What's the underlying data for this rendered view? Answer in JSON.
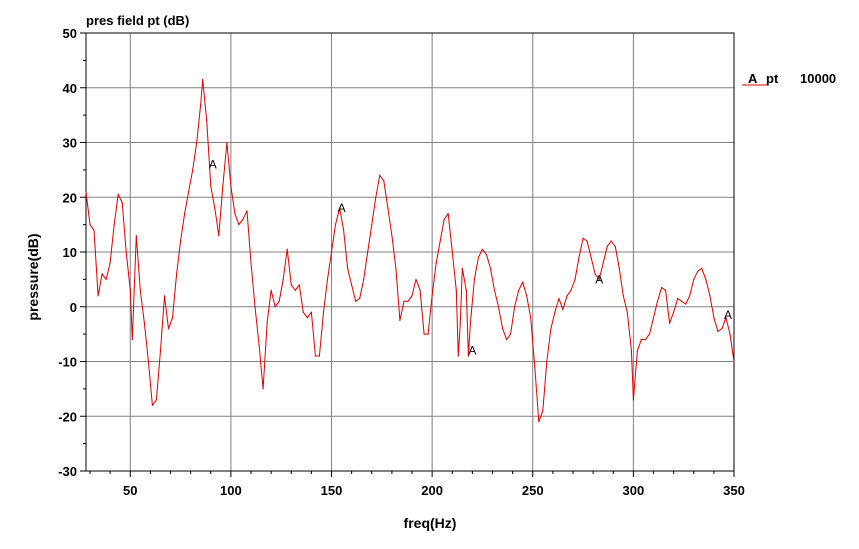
{
  "chart_data": {
    "type": "line",
    "title": "pres field pt (dB)",
    "xlabel": "freq(Hz)",
    "ylabel": "pressure(dB)",
    "xlim": [
      28,
      350
    ],
    "ylim": [
      -30,
      50
    ],
    "x_ticks": [
      50,
      100,
      150,
      200,
      250,
      300,
      350
    ],
    "y_ticks": [
      -30,
      -20,
      -10,
      0,
      10,
      20,
      30,
      40,
      50
    ],
    "grid": true,
    "legend_position": "right",
    "series": [
      {
        "name": "pt",
        "legend_marker": "A",
        "legend_value": "10000",
        "color": "#dd0000",
        "marker_label": "A",
        "marker_points": [
          [
            91,
            26
          ],
          [
            155,
            18
          ],
          [
            220,
            -8
          ],
          [
            283,
            5
          ],
          [
            347,
            -1.5
          ]
        ],
        "points": [
          [
            28,
            21
          ],
          [
            30,
            15
          ],
          [
            32,
            14
          ],
          [
            34,
            2
          ],
          [
            36,
            6
          ],
          [
            38,
            5
          ],
          [
            40,
            8
          ],
          [
            42,
            15
          ],
          [
            44,
            20.5
          ],
          [
            46,
            19
          ],
          [
            48,
            10
          ],
          [
            50,
            3
          ],
          [
            51,
            -6
          ],
          [
            53,
            13
          ],
          [
            55,
            3
          ],
          [
            57,
            -3
          ],
          [
            59,
            -10
          ],
          [
            61,
            -18
          ],
          [
            63,
            -17
          ],
          [
            65,
            -8
          ],
          [
            67,
            2
          ],
          [
            69,
            -4
          ],
          [
            71,
            -2
          ],
          [
            73,
            6
          ],
          [
            75,
            12
          ],
          [
            77,
            17
          ],
          [
            79,
            21
          ],
          [
            81,
            25
          ],
          [
            83,
            30
          ],
          [
            85,
            37
          ],
          [
            86,
            41.5
          ],
          [
            88,
            34
          ],
          [
            90,
            22
          ],
          [
            92,
            18
          ],
          [
            94,
            13
          ],
          [
            96,
            22
          ],
          [
            98,
            30
          ],
          [
            100,
            22
          ],
          [
            102,
            17
          ],
          [
            104,
            15
          ],
          [
            106,
            16
          ],
          [
            108,
            17.5
          ],
          [
            110,
            8
          ],
          [
            112,
            0
          ],
          [
            114,
            -7
          ],
          [
            116,
            -15
          ],
          [
            118,
            -3
          ],
          [
            120,
            3
          ],
          [
            122,
            0
          ],
          [
            124,
            1
          ],
          [
            126,
            5
          ],
          [
            128,
            10.5
          ],
          [
            130,
            4
          ],
          [
            132,
            3
          ],
          [
            134,
            4
          ],
          [
            136,
            -1
          ],
          [
            138,
            -2
          ],
          [
            140,
            -1
          ],
          [
            142,
            -9
          ],
          [
            144,
            -9
          ],
          [
            146,
            -1
          ],
          [
            148,
            5
          ],
          [
            150,
            10
          ],
          [
            152,
            15
          ],
          [
            154,
            18
          ],
          [
            156,
            14
          ],
          [
            158,
            7
          ],
          [
            160,
            4
          ],
          [
            162,
            1
          ],
          [
            164,
            1.5
          ],
          [
            166,
            5
          ],
          [
            168,
            10
          ],
          [
            170,
            15
          ],
          [
            172,
            20
          ],
          [
            174,
            24
          ],
          [
            176,
            23
          ],
          [
            178,
            18
          ],
          [
            180,
            13
          ],
          [
            182,
            7
          ],
          [
            184,
            -2.5
          ],
          [
            186,
            1
          ],
          [
            188,
            1
          ],
          [
            190,
            2
          ],
          [
            192,
            5
          ],
          [
            194,
            3
          ],
          [
            196,
            -5
          ],
          [
            198,
            -5
          ],
          [
            200,
            2
          ],
          [
            202,
            8
          ],
          [
            204,
            12
          ],
          [
            206,
            16
          ],
          [
            208,
            17
          ],
          [
            210,
            10
          ],
          [
            212,
            3
          ],
          [
            213,
            -9
          ],
          [
            214,
            -3
          ],
          [
            215,
            7
          ],
          [
            217,
            3
          ],
          [
            218,
            -9
          ],
          [
            219,
            -3
          ],
          [
            221,
            5
          ],
          [
            223,
            9
          ],
          [
            225,
            10.5
          ],
          [
            227,
            9.5
          ],
          [
            229,
            7
          ],
          [
            231,
            3
          ],
          [
            233,
            0
          ],
          [
            235,
            -4
          ],
          [
            237,
            -6
          ],
          [
            239,
            -5
          ],
          [
            241,
            0
          ],
          [
            243,
            3
          ],
          [
            245,
            4.5
          ],
          [
            247,
            2
          ],
          [
            249,
            -2
          ],
          [
            251,
            -11
          ],
          [
            253,
            -21
          ],
          [
            255,
            -19
          ],
          [
            257,
            -10
          ],
          [
            259,
            -4
          ],
          [
            261,
            -1
          ],
          [
            263,
            1.5
          ],
          [
            265,
            -0.5
          ],
          [
            267,
            2
          ],
          [
            269,
            3
          ],
          [
            271,
            5
          ],
          [
            273,
            9
          ],
          [
            275,
            12.5
          ],
          [
            277,
            12
          ],
          [
            279,
            9
          ],
          [
            281,
            6
          ],
          [
            283,
            5
          ],
          [
            285,
            8
          ],
          [
            287,
            11
          ],
          [
            289,
            12
          ],
          [
            291,
            11
          ],
          [
            293,
            7
          ],
          [
            295,
            2
          ],
          [
            297,
            -1
          ],
          [
            299,
            -8
          ],
          [
            300,
            -17
          ],
          [
            302,
            -8
          ],
          [
            304,
            -6
          ],
          [
            306,
            -6
          ],
          [
            308,
            -5
          ],
          [
            310,
            -2
          ],
          [
            312,
            1
          ],
          [
            314,
            3.5
          ],
          [
            316,
            3
          ],
          [
            318,
            -3
          ],
          [
            320,
            -1
          ],
          [
            322,
            1.5
          ],
          [
            324,
            1
          ],
          [
            326,
            0.5
          ],
          [
            328,
            2
          ],
          [
            330,
            5
          ],
          [
            332,
            6.5
          ],
          [
            334,
            7
          ],
          [
            336,
            5
          ],
          [
            338,
            2
          ],
          [
            340,
            -2
          ],
          [
            342,
            -4.5
          ],
          [
            344,
            -4
          ],
          [
            346,
            -2
          ],
          [
            348,
            -5
          ],
          [
            350,
            -10
          ]
        ]
      }
    ]
  }
}
